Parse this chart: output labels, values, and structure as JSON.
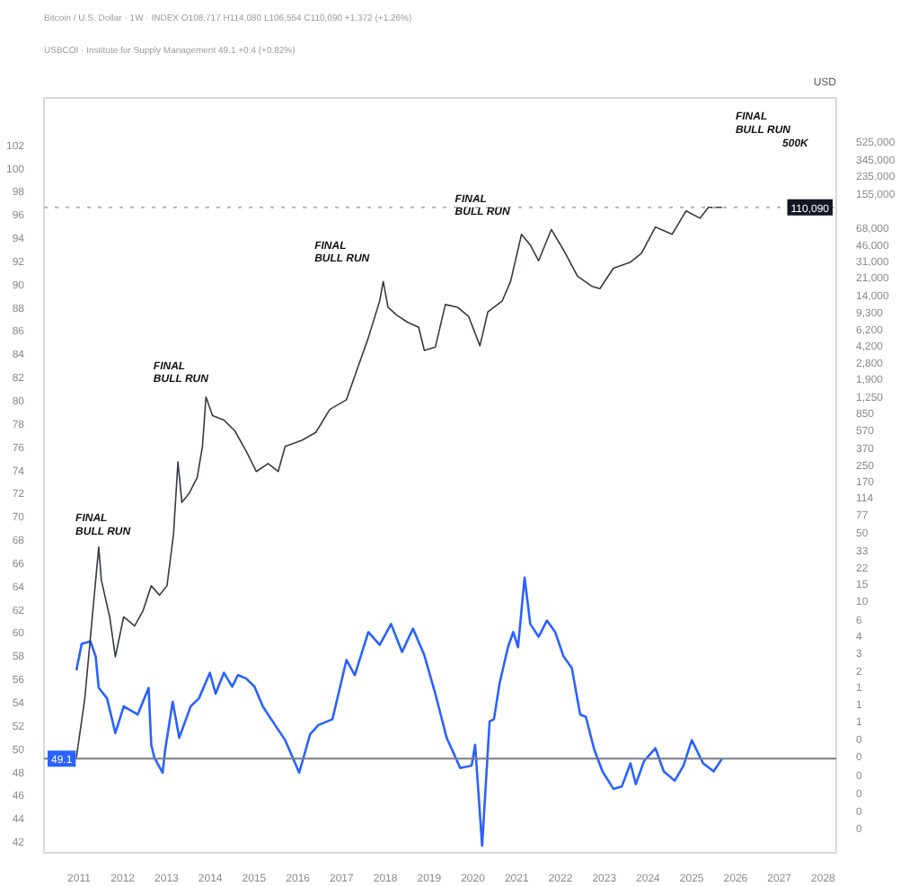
{
  "chart_data": {
    "type": "line",
    "title": "Bitcoin / U.S. Dollar · 1W · INDEX  O108,717 H114,080 L106,554 C110,090 +1,372 (+1.26%)",
    "subtitle": "USBCOI · Institute for Supply Management  49.1  +0.4 (+0.82%)",
    "y2label": "USD",
    "x": [
      2010.94,
      2011.06,
      2011.26,
      2011.38,
      2011.45,
      2011.64,
      2011.83,
      2012.02,
      2012.34,
      2012.46,
      2012.59,
      2012.65,
      2012.72,
      2012.91,
      2012.97,
      2013.14,
      2013.29,
      2013.55,
      2013.74,
      2013.99,
      2014.12,
      2014.31,
      2014.5,
      2014.63,
      2014.82,
      2015.01,
      2015.2,
      2015.39,
      2015.71,
      2016.03,
      2016.28,
      2016.47,
      2016.79,
      2017.11,
      2017.3,
      2017.61,
      2017.87,
      2018.13,
      2018.38,
      2018.63,
      2018.89,
      2019.14,
      2019.4,
      2019.71,
      2019.97,
      2020.05,
      2020.21,
      2020.38,
      2020.48,
      2020.61,
      2020.8,
      2020.92,
      2021.03,
      2021.18,
      2021.31,
      2021.5,
      2021.69,
      2021.88,
      2022.07,
      2022.26,
      2022.45,
      2022.58,
      2022.77,
      2022.96,
      2023.21,
      2023.4,
      2023.6,
      2023.72,
      2023.91,
      2024.17,
      2024.36,
      2024.61,
      2024.81,
      2025.0,
      2025.26,
      2025.5,
      2025.69
    ],
    "series": [
      {
        "color": "#2962ff",
        "values": [
          56.7,
          59.0,
          59.2,
          57.9,
          55.2,
          54.3,
          51.3,
          53.6,
          52.9,
          54.0,
          55.2,
          50.3,
          49.2,
          47.9,
          49.9,
          54.0,
          50.9,
          53.6,
          54.3,
          56.5,
          54.7,
          56.5,
          55.3,
          56.3,
          56.0,
          55.3,
          53.6,
          52.5,
          50.7,
          47.9,
          51.2,
          52.0,
          52.5,
          57.6,
          56.3,
          60.0,
          58.9,
          60.7,
          58.3,
          60.3,
          58.0,
          54.7,
          50.9,
          48.3,
          48.5,
          50.3,
          41.6,
          52.3,
          52.5,
          55.6,
          58.7,
          60.0,
          58.7,
          64.7,
          60.7,
          59.6,
          61.0,
          60.0,
          57.9,
          56.9,
          52.9,
          52.7,
          49.9,
          48.0,
          46.5,
          46.7,
          48.7,
          46.9,
          48.9,
          50.0,
          48.0,
          47.2,
          48.5,
          50.7,
          48.7,
          48.0,
          49.1
        ]
      },
      {
        "axis": "y2",
        "color": "#363a45",
        "x": [
          2010.94,
          2011.13,
          2011.45,
          2011.51,
          2011.7,
          2011.83,
          2012.02,
          2012.27,
          2012.46,
          2012.65,
          2012.84,
          2013.01,
          2013.16,
          2013.26,
          2013.35,
          2013.52,
          2013.7,
          2013.82,
          2013.9,
          2014.05,
          2014.31,
          2014.56,
          2014.82,
          2015.05,
          2015.32,
          2015.55,
          2015.71,
          2016.09,
          2016.41,
          2016.73,
          2017.11,
          2017.36,
          2017.61,
          2017.87,
          2017.95,
          2018.06,
          2018.25,
          2018.51,
          2018.76,
          2018.89,
          2019.14,
          2019.37,
          2019.65,
          2019.9,
          2020.16,
          2020.34,
          2020.67,
          2020.86,
          2021.11,
          2021.31,
          2021.5,
          2021.79,
          2022.07,
          2022.39,
          2022.71,
          2022.9,
          2023.21,
          2023.6,
          2023.85,
          2024.17,
          2024.55,
          2024.87,
          2025.19,
          2025.38,
          2025.69
        ],
        "values": [
          0.24,
          0.95,
          35,
          16,
          6.7,
          2.6,
          6.7,
          5.4,
          7.7,
          14,
          11.2,
          14,
          48,
          263,
          101,
          126,
          182,
          381,
          1230,
          790,
          710,
          550,
          340,
          210,
          254,
          210,
          381,
          440,
          530,
          915,
          1150,
          2400,
          5000,
          12000,
          19000,
          10300,
          8600,
          7200,
          6400,
          3700,
          4000,
          11000,
          10300,
          8300,
          4130,
          9200,
          12000,
          19000,
          58000,
          45000,
          31000,
          65000,
          40000,
          21500,
          17000,
          16000,
          26000,
          30000,
          37000,
          69000,
          58000,
          101000,
          85000,
          110000,
          110090
        ]
      }
    ],
    "xlim": [
      2010.2,
      2028.3
    ],
    "xticks": [
      2011,
      2012,
      2013,
      2014,
      2015,
      2016,
      2017,
      2018,
      2019,
      2020,
      2021,
      2022,
      2023,
      2024,
      2025,
      2026,
      2027,
      2028
    ],
    "ylim": [
      41,
      106
    ],
    "yticks": [
      42,
      44,
      46,
      48,
      50,
      52,
      54,
      56,
      58,
      60,
      62,
      64,
      66,
      68,
      70,
      72,
      74,
      76,
      78,
      80,
      82,
      84,
      86,
      88,
      90,
      92,
      94,
      96,
      98,
      100,
      102
    ],
    "y2lim": [
      0.025,
      1470000
    ],
    "y2ticks": [
      {
        "value": 525000,
        "label": "525,000"
      },
      {
        "value": 345000,
        "label": "345,000"
      },
      {
        "value": 235000,
        "label": "235,000"
      },
      {
        "value": 155000,
        "label": "155,000"
      },
      {
        "value": 68000,
        "label": "68,000"
      },
      {
        "value": 46000,
        "label": "46,000"
      },
      {
        "value": 31000,
        "label": "31,000"
      },
      {
        "value": 21000,
        "label": "21,000"
      },
      {
        "value": 14000,
        "label": "14,000"
      },
      {
        "value": 9300,
        "label": "9,300"
      },
      {
        "value": 6200,
        "label": "6,200"
      },
      {
        "value": 4200,
        "label": "4,200"
      },
      {
        "value": 2800,
        "label": "2,800"
      },
      {
        "value": 1900,
        "label": "1,900"
      },
      {
        "value": 1250,
        "label": "1,250"
      },
      {
        "value": 850,
        "label": "850"
      },
      {
        "value": 570,
        "label": "570"
      },
      {
        "value": 370,
        "label": "370"
      },
      {
        "value": 250,
        "label": "250"
      },
      {
        "value": 170,
        "label": "170"
      },
      {
        "value": 114,
        "label": "114"
      },
      {
        "value": 77,
        "label": "77"
      },
      {
        "value": 50,
        "label": "50"
      },
      {
        "value": 33,
        "label": "33"
      },
      {
        "value": 22,
        "label": "22"
      },
      {
        "value": 15,
        "label": "15"
      },
      {
        "value": 10,
        "label": "10"
      },
      {
        "value": 6.4,
        "label": "6"
      },
      {
        "value": 4.3,
        "label": "4"
      },
      {
        "value": 2.9,
        "label": "3"
      },
      {
        "value": 1.9,
        "label": "2"
      },
      {
        "value": 1.28,
        "label": "1"
      },
      {
        "value": 0.85,
        "label": "1"
      },
      {
        "value": 0.57,
        "label": "1"
      },
      {
        "value": 0.37,
        "label": "0"
      },
      {
        "value": 0.25,
        "label": "0"
      },
      {
        "value": 0.16,
        "label": "0"
      },
      {
        "value": 0.105,
        "label": "0"
      },
      {
        "value": 0.068,
        "label": "0"
      },
      {
        "value": 0.045,
        "label": "0"
      }
    ],
    "log": "y2",
    "ref_lines": [
      {
        "axis": "y",
        "value": 49.1,
        "label": "49.1",
        "color": "#787b86"
      },
      {
        "axis": "y2",
        "value": 110090,
        "label": "110,090",
        "color": "#b2b5be",
        "line_style": "dotted"
      }
    ],
    "annotations": [
      "FINAL\nBULL RUN",
      "FINAL\nBULL RUN",
      "FINAL\nBULL RUN",
      "FINAL\nBULL RUN",
      "FINAL\nBULL RUN",
      "500K"
    ],
    "grid": false,
    "marker": "none",
    "line_style": "solid"
  }
}
